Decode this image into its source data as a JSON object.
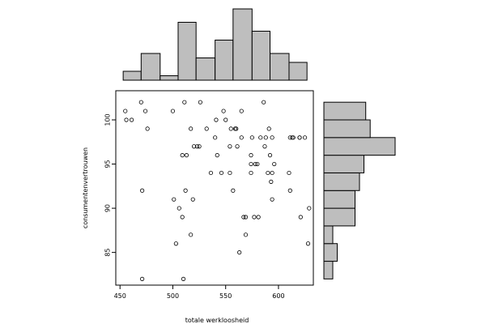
{
  "chart_data": {
    "type": "scatter",
    "title": "",
    "xlabel": "totale werkloosheid",
    "ylabel": "consumentenvertrouwen",
    "xlim": [
      446,
      633
    ],
    "ylim": [
      81.3,
      103.3
    ],
    "x_ticks": [
      450,
      500,
      550,
      600
    ],
    "y_ticks": [
      85,
      90,
      95,
      100
    ],
    "grid": false,
    "points": [
      [
        455,
        101
      ],
      [
        456,
        100
      ],
      [
        461,
        100
      ],
      [
        470,
        102
      ],
      [
        471,
        92
      ],
      [
        471,
        82
      ],
      [
        474,
        101
      ],
      [
        476,
        99
      ],
      [
        500,
        101
      ],
      [
        501,
        91
      ],
      [
        503,
        86
      ],
      [
        506,
        90
      ],
      [
        509,
        89
      ],
      [
        509,
        96
      ],
      [
        510,
        82
      ],
      [
        511,
        102
      ],
      [
        512,
        92
      ],
      [
        513,
        96
      ],
      [
        517,
        99
      ],
      [
        517,
        87
      ],
      [
        519,
        91
      ],
      [
        520,
        97
      ],
      [
        523,
        97
      ],
      [
        525,
        97
      ],
      [
        526,
        102
      ],
      [
        532,
        99
      ],
      [
        536,
        94
      ],
      [
        540,
        98
      ],
      [
        541,
        100
      ],
      [
        542,
        96
      ],
      [
        546,
        94
      ],
      [
        548,
        101
      ],
      [
        550,
        100
      ],
      [
        554,
        97
      ],
      [
        554,
        94
      ],
      [
        555,
        99
      ],
      [
        557,
        92
      ],
      [
        559,
        99
      ],
      [
        560,
        99
      ],
      [
        561,
        97
      ],
      [
        563,
        85
      ],
      [
        565,
        98
      ],
      [
        565,
        101
      ],
      [
        567,
        89
      ],
      [
        569,
        89
      ],
      [
        569,
        87
      ],
      [
        574,
        96
      ],
      [
        574,
        95
      ],
      [
        574,
        94
      ],
      [
        575,
        98
      ],
      [
        577,
        89
      ],
      [
        578,
        95
      ],
      [
        580,
        95
      ],
      [
        581,
        89
      ],
      [
        583,
        98
      ],
      [
        586,
        102
      ],
      [
        587,
        97
      ],
      [
        588,
        98
      ],
      [
        590,
        94
      ],
      [
        591,
        99
      ],
      [
        592,
        96
      ],
      [
        593,
        93
      ],
      [
        594,
        98
      ],
      [
        594,
        91
      ],
      [
        594,
        94
      ],
      [
        596,
        95
      ],
      [
        610,
        94
      ],
      [
        611,
        92
      ],
      [
        611,
        98
      ],
      [
        613,
        98
      ],
      [
        614,
        98
      ],
      [
        620,
        98
      ],
      [
        620,
        98
      ],
      [
        621,
        89
      ],
      [
        625,
        98
      ],
      [
        628,
        86
      ],
      [
        629,
        90
      ]
    ],
    "x_hist": {
      "bin_edges": [
        453,
        470,
        488,
        505,
        522,
        540,
        557,
        575,
        592,
        610,
        627
      ],
      "heights": [
        1,
        3,
        0.5,
        6.5,
        2.5,
        4.5,
        8,
        5.5,
        3,
        2
      ]
    },
    "y_hist": {
      "bin_edges": [
        82,
        84,
        86,
        88,
        90,
        92,
        94,
        96,
        98,
        100,
        102
      ],
      "widths": [
        1,
        1.5,
        1,
        3.5,
        3.5,
        4,
        4.5,
        8,
        5.2,
        4.7
      ]
    }
  }
}
